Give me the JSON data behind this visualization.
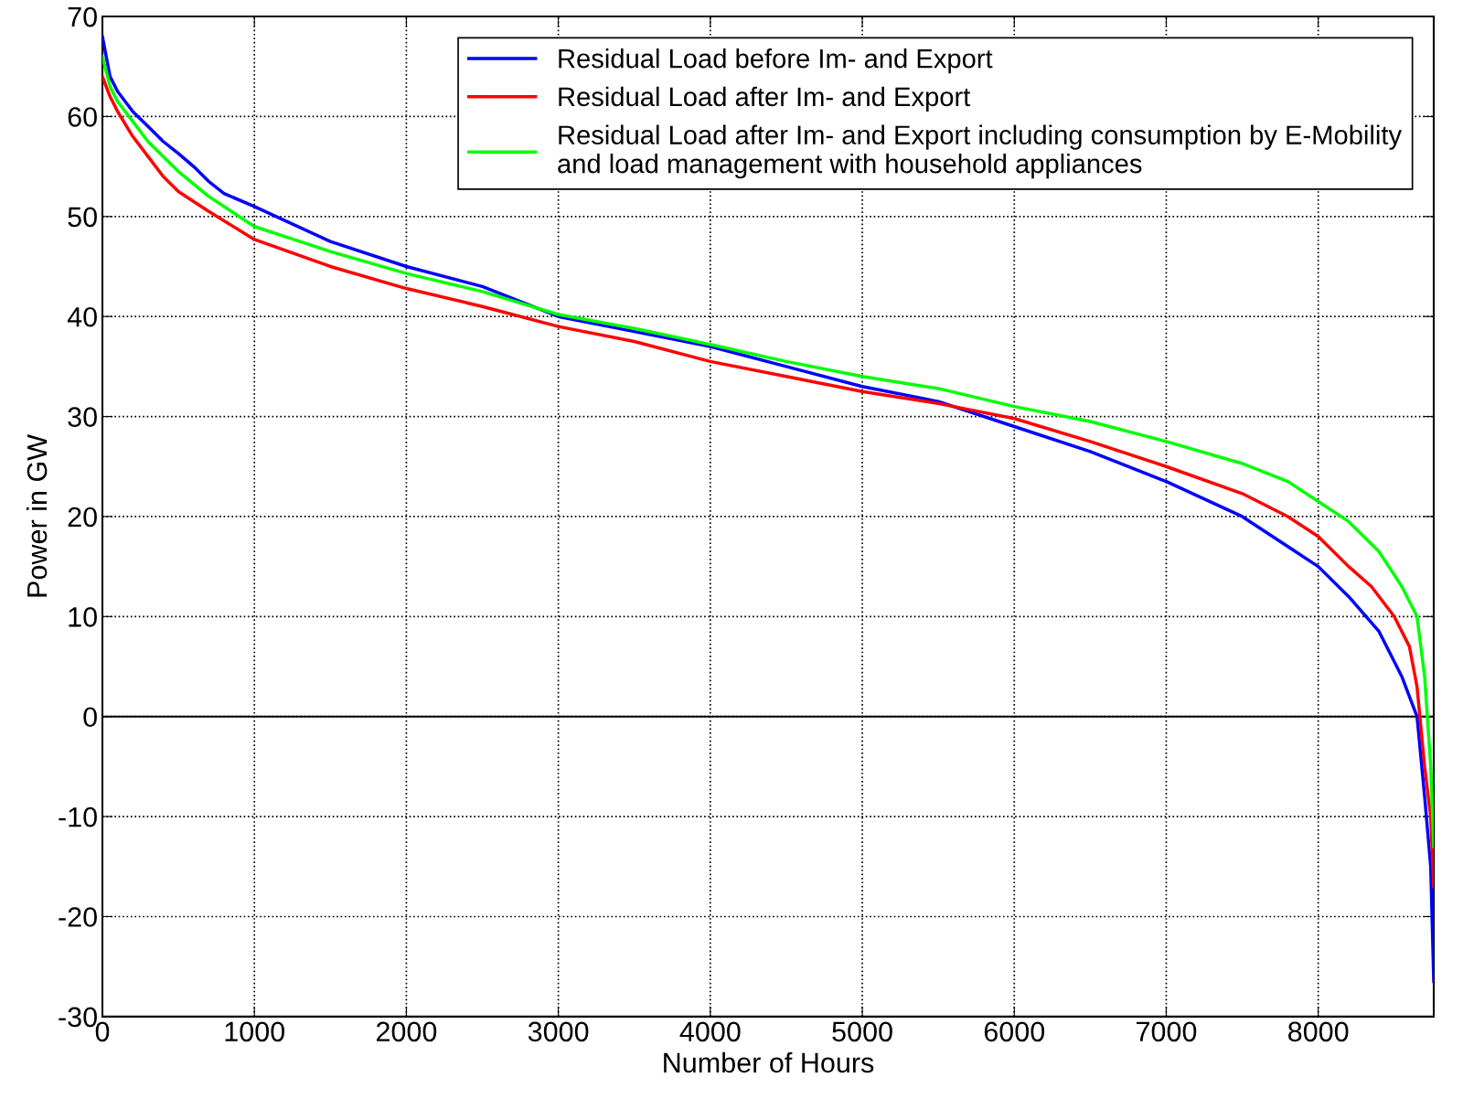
{
  "chart_data": {
    "type": "line",
    "xlabel": "Number of Hours",
    "ylabel": "Power in GW",
    "xlim": [
      0,
      8760
    ],
    "xticks": [
      0,
      1000,
      2000,
      3000,
      4000,
      5000,
      6000,
      7000,
      8000
    ],
    "ylim": [
      -30,
      70
    ],
    "yticks": [
      -30,
      -20,
      -10,
      0,
      10,
      20,
      30,
      40,
      50,
      60,
      70
    ],
    "grid": true,
    "legend": "top right",
    "marker": "none",
    "line_style": "solid",
    "ref_lines": [
      {
        "axis": "y",
        "value": 0,
        "color": "#000000",
        "line_style": "solid"
      }
    ],
    "series": [
      {
        "name": "Residual Load before Im- and Export",
        "color": "#0000ff",
        "x": [
          0,
          50,
          100,
          200,
          300,
          400,
          500,
          600,
          700,
          800,
          1000,
          1500,
          2000,
          2500,
          3000,
          3500,
          4000,
          4500,
          5000,
          5500,
          6000,
          6500,
          7000,
          7500,
          7800,
          8000,
          8200,
          8400,
          8550,
          8650,
          8700,
          8740,
          8760
        ],
        "values": [
          68,
          64,
          62.5,
          60.5,
          59,
          57.5,
          56.3,
          55,
          53.5,
          52.3,
          51,
          47.5,
          45,
          43,
          40,
          38.5,
          37,
          35,
          33,
          31.5,
          29,
          26.5,
          23.5,
          20,
          17,
          15,
          12,
          8.5,
          4,
          0,
          -8,
          -15,
          -26.5
        ]
      },
      {
        "name": "Residual Load after Im- and Export",
        "color": "#ff0000",
        "x": [
          0,
          50,
          100,
          200,
          300,
          400,
          500,
          700,
          1000,
          1500,
          2000,
          2500,
          3000,
          3500,
          4000,
          4500,
          5000,
          5500,
          6000,
          6500,
          7000,
          7500,
          7800,
          8000,
          8200,
          8350,
          8500,
          8600,
          8650,
          8700,
          8740,
          8760
        ],
        "values": [
          64,
          62,
          60.5,
          58,
          56,
          54,
          52.5,
          50.5,
          47.7,
          45,
          42.8,
          41,
          39,
          37.5,
          35.5,
          34,
          32.5,
          31.3,
          29.8,
          27.5,
          25,
          22.3,
          20,
          18,
          15,
          13,
          10,
          7,
          3,
          -5,
          -10,
          -17
        ]
      },
      {
        "name": "Residual Load after Im- and Export including consumption by E-Mobility\nand load management with household appliances",
        "color": "#00ff00",
        "x": [
          0,
          50,
          100,
          200,
          300,
          400,
          500,
          700,
          1000,
          1500,
          2000,
          2500,
          3000,
          3500,
          4000,
          4500,
          5000,
          5500,
          6000,
          6500,
          7000,
          7500,
          7800,
          8000,
          8200,
          8400,
          8550,
          8650,
          8700,
          8740,
          8760
        ],
        "values": [
          66,
          63,
          61.5,
          59.5,
          57.5,
          56,
          54.5,
          52,
          49,
          46.5,
          44.3,
          42.5,
          40.2,
          38.8,
          37.2,
          35.5,
          34,
          32.8,
          31,
          29.5,
          27.5,
          25.3,
          23.5,
          21.5,
          19.5,
          16.5,
          13,
          10,
          4,
          -5,
          -13
        ]
      }
    ]
  }
}
